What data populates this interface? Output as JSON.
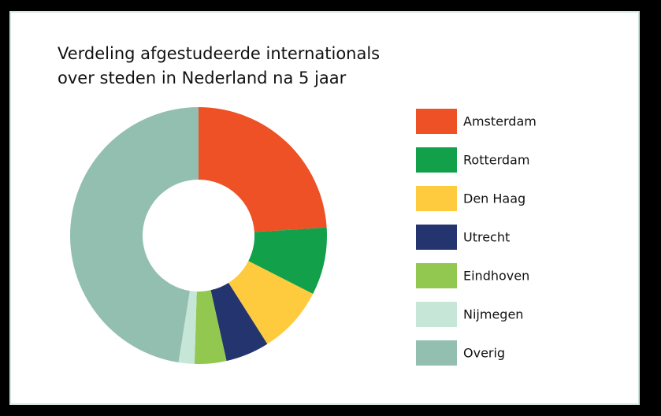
{
  "chart_data": {
    "type": "donut",
    "title": [
      "Verdeling afgestudeerde internationals",
      "over steden in Nederland na 5 jaar"
    ],
    "categories": [
      "Amsterdam",
      "Rotterdam",
      "Den Haag",
      "Utrecht",
      "Eindhoven",
      "Nijmegen",
      "Overig"
    ],
    "values": [
      24,
      8.5,
      8.5,
      5.5,
      4,
      2,
      47.5
    ],
    "colors": [
      "#ee5125",
      "#12a04a",
      "#fdcb3d",
      "#24346f",
      "#92c84f",
      "#c6e6d8",
      "#93bfb1"
    ]
  }
}
